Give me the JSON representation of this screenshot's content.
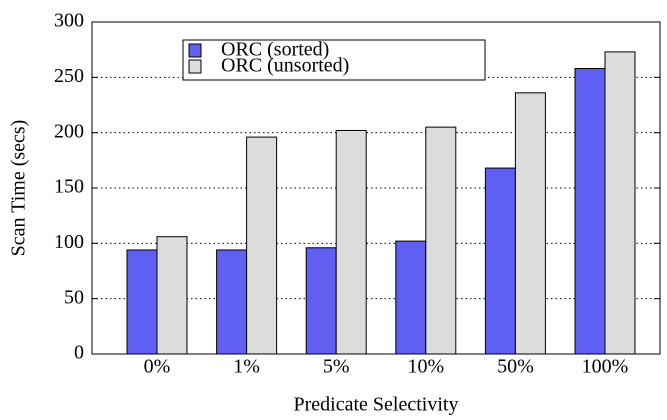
{
  "chart_data": {
    "type": "bar",
    "xlabel": "Predicate Selectivity",
    "ylabel": "Scan Time (secs)",
    "categories": [
      "0%",
      "1%",
      "5%",
      "10%",
      "50%",
      "100%"
    ],
    "series": [
      {
        "name": "ORC (sorted)",
        "color": "#5f5ff2",
        "values": [
          94,
          94,
          96,
          102,
          168,
          258
        ]
      },
      {
        "name": "ORC (unsorted)",
        "color": "#dcdcdc",
        "values": [
          106,
          196,
          202,
          205,
          236,
          273
        ]
      }
    ],
    "ylim": [
      0,
      300
    ],
    "yticks": [
      0,
      50,
      100,
      150,
      200,
      250,
      300
    ],
    "grid": true,
    "legend": "upper left"
  }
}
